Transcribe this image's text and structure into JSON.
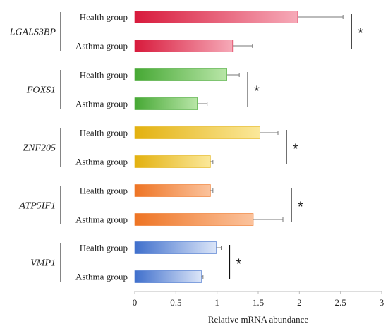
{
  "chart_data": {
    "type": "bar",
    "orientation": "horizontal",
    "xlabel": "Relative mRNA abundance",
    "xlim": [
      0,
      3
    ],
    "xticks": [
      "0",
      "0.5",
      "1",
      "1.5",
      "2",
      "2.5",
      "3"
    ],
    "grid": false,
    "legend": "none",
    "groups": [
      {
        "gene": "LGALS3BP",
        "significance": "*",
        "colors": {
          "dark": "#d81a3c",
          "light": "#f6aab8"
        },
        "bars": [
          {
            "label": "Health group",
            "value": 1.98,
            "error": 0.55
          },
          {
            "label": "Asthma group",
            "value": 1.19,
            "error": 0.24
          }
        ]
      },
      {
        "gene": "FOXS1",
        "significance": "*",
        "colors": {
          "dark": "#46a834",
          "light": "#b9e6a8"
        },
        "bars": [
          {
            "label": "Health group",
            "value": 1.12,
            "error": 0.15
          },
          {
            "label": "Asthma group",
            "value": 0.76,
            "error": 0.12
          }
        ]
      },
      {
        "gene": "ZNF205",
        "significance": "*",
        "colors": {
          "dark": "#e3b10f",
          "light": "#fbe89a"
        },
        "bars": [
          {
            "label": "Health group",
            "value": 1.52,
            "error": 0.22
          },
          {
            "label": "Asthma group",
            "value": 0.92,
            "error": 0.03
          }
        ]
      },
      {
        "gene": "ATP5IF1",
        "significance": "*",
        "colors": {
          "dark": "#ee7424",
          "light": "#fbc39d"
        },
        "bars": [
          {
            "label": "Health group",
            "value": 0.92,
            "error": 0.03
          },
          {
            "label": "Asthma group",
            "value": 1.44,
            "error": 0.36
          }
        ]
      },
      {
        "gene": "VMP1",
        "significance": "*",
        "colors": {
          "dark": "#3f6fcc",
          "light": "#dbe5f8"
        },
        "bars": [
          {
            "label": "Health group",
            "value": 0.99,
            "error": 0.06
          },
          {
            "label": "Asthma group",
            "value": 0.81,
            "error": 0.02
          }
        ]
      }
    ]
  }
}
